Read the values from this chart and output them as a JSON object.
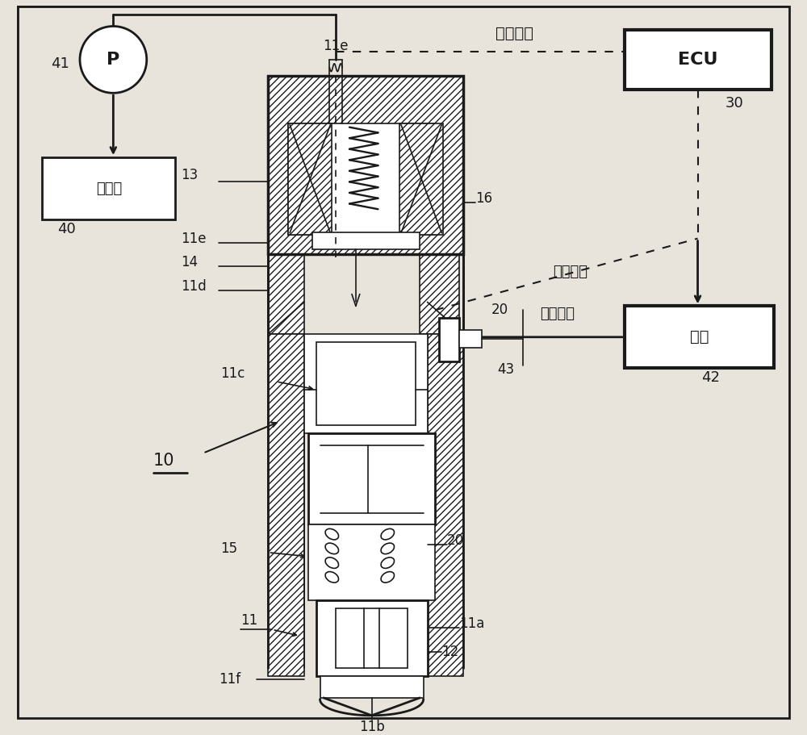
{
  "bg_color": "#e8e4dc",
  "line_color": "#1a1a1a",
  "white": "#ffffff",
  "labels": {
    "P": "P",
    "41": "41",
    "fuel_tank": "燃料筱",
    "40": "40",
    "ECU": "ECU",
    "30": "30",
    "tong_signal": "通电信号",
    "pressure_signal": "压力信号",
    "high_pressure": "高压燃料",
    "common_rail": "共轨",
    "42": "42",
    "43": "43",
    "10": "10",
    "11": "11",
    "11a": "11a",
    "11b": "11b",
    "11c": "11c",
    "11d": "11d",
    "11e": "11e",
    "11f": "11f",
    "12": "12",
    "13": "13",
    "14": "14",
    "15": "15",
    "16": "16",
    "20": "20"
  },
  "fig_w": 10.0,
  "fig_h": 9.11,
  "dpi": 100
}
